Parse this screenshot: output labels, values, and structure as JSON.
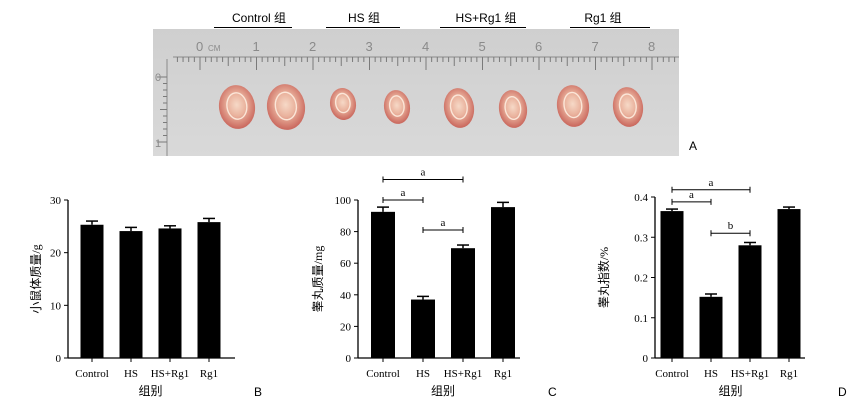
{
  "photo": {
    "groups": [
      "Control 组",
      "HS 组",
      "HS+Rg1 组",
      "Rg1 组"
    ],
    "ruler_numbers": [
      "0",
      "1",
      "2",
      "3",
      "4",
      "5",
      "6",
      "7",
      "8"
    ],
    "ruler_unit": "CM",
    "ruler_vertical_numbers": [
      "0",
      "1"
    ],
    "panel_label": "A",
    "colors": {
      "background": "#d4d4d4",
      "testis_outer": "#d9857a",
      "testis_inner": "#f3cdb8"
    }
  },
  "chart_data": [
    {
      "panel": "B",
      "type": "bar",
      "categories": [
        "Control",
        "HS",
        "HS+Rg1",
        "Rg1"
      ],
      "values": [
        25.3,
        24.1,
        24.6,
        25.8
      ],
      "errors": [
        0.7,
        0.7,
        0.5,
        0.7
      ],
      "ylabel": "小鼠体质量/g",
      "xlabel": "组别",
      "ylim": [
        0,
        30
      ],
      "yticks": [
        "0",
        "10",
        "20",
        "30"
      ],
      "annotations": []
    },
    {
      "panel": "C",
      "type": "bar",
      "categories": [
        "Control",
        "HS",
        "HS+Rg1",
        "Rg1"
      ],
      "values": [
        92.5,
        37.0,
        69.5,
        95.5
      ],
      "errors": [
        3.0,
        2.0,
        2.0,
        3.0
      ],
      "ylabel": "睾丸质量/mg",
      "xlabel": "组别",
      "ylim": [
        0,
        100
      ],
      "yticks": [
        "0",
        "20",
        "40",
        "60",
        "80",
        "100"
      ],
      "annotations": [
        {
          "label": "a",
          "from": "Control",
          "to": "HS+Rg1",
          "level": 113
        },
        {
          "label": "a",
          "from": "Control",
          "to": "HS",
          "level": 100
        },
        {
          "label": "a",
          "from": "HS",
          "to": "HS+Rg1",
          "level": 81
        }
      ]
    },
    {
      "panel": "D",
      "type": "bar",
      "categories": [
        "Control",
        "HS",
        "HS+Rg1",
        "Rg1"
      ],
      "values": [
        0.365,
        0.152,
        0.28,
        0.37
      ],
      "errors": [
        0.005,
        0.007,
        0.007,
        0.005
      ],
      "ylabel": "睾丸指数/%",
      "xlabel": "组别",
      "ylim": [
        0,
        0.4
      ],
      "yticks": [
        "0",
        "0.1",
        "0.2",
        "0.3",
        "0.4"
      ],
      "annotations": [
        {
          "label": "a",
          "from": "Control",
          "to": "HS+Rg1",
          "level": 0.418
        },
        {
          "label": "a",
          "from": "Control",
          "to": "HS",
          "level": 0.388
        },
        {
          "label": "b",
          "from": "HS",
          "to": "HS+Rg1",
          "level": 0.31
        }
      ]
    }
  ]
}
